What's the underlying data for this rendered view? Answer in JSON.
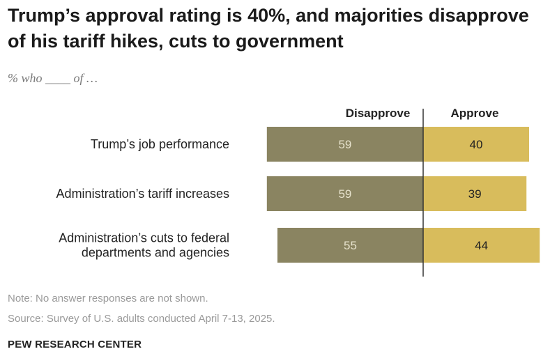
{
  "header": {
    "title": "Trump’s approval rating is 40%, and majorities disapprove of his tariff hikes, cuts to government",
    "subtitle": "% who ____ of …"
  },
  "footer": {
    "note": "Note: No answer responses are not shown.",
    "source": "Source: Survey of U.S. adults conducted April 7-13, 2025.",
    "brand": "PEW RESEARCH CENTER"
  },
  "chart_data": {
    "type": "bar",
    "orientation": "horizontal-diverging",
    "categories": [
      [
        "Trump’s job performance"
      ],
      [
        "Administration’s tariff increases"
      ],
      [
        "Administration’s cuts to federal",
        "departments and agencies"
      ]
    ],
    "series": [
      {
        "name": "Disapprove",
        "values": [
          59,
          59,
          55
        ],
        "color": "#8a8461",
        "label_color": "#e6e2cc"
      },
      {
        "name": "Approve",
        "values": [
          40,
          39,
          44
        ],
        "color": "#d8bc5c",
        "label_color": "#222222"
      }
    ],
    "colors": {
      "axis": "#333333"
    }
  }
}
